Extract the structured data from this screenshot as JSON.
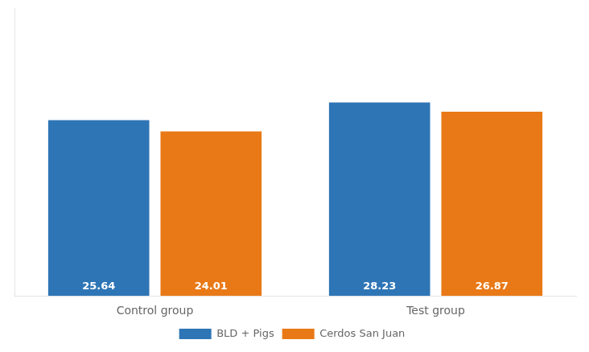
{
  "chart_data": {
    "type": "bar",
    "categories": [
      "Control group",
      "Test group"
    ],
    "series": [
      {
        "name": "BLD + Pigs",
        "color": "#2E75B6",
        "values": [
          25.64,
          28.23
        ]
      },
      {
        "name": "Cerdos San Juan",
        "color": "#E97916",
        "values": [
          24.01,
          26.87
        ]
      }
    ],
    "ylim": [
      0,
      42
    ],
    "grid": false,
    "legend": "bottom",
    "data_labels": true,
    "tick_labels": "x"
  }
}
